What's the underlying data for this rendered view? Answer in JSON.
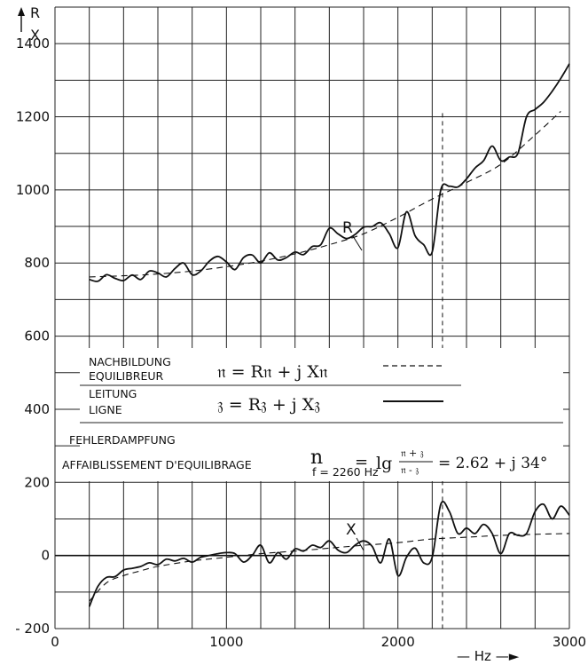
{
  "chart_data": {
    "type": "line",
    "y_axis_label_top": "R",
    "y_axis_label_bottom": "X",
    "x_axis_label": "— Hz —►",
    "xlim": [
      0,
      3000
    ],
    "ylim": [
      -200,
      1500
    ],
    "grid": true,
    "x_ticks": [
      0,
      1000,
      2000,
      3000
    ],
    "y_ticks": [
      -200,
      0,
      200,
      400,
      600,
      800,
      1000,
      1200,
      1400
    ],
    "x_ticks_text": [
      "0",
      "1000",
      "2000",
      "3000"
    ],
    "y_ticks_text": [
      "- 200",
      "0",
      "200",
      "400",
      "600",
      "800",
      "1000",
      "1200",
      "1400"
    ],
    "marker_x": 2260,
    "curve_labels": {
      "R": "R",
      "X": "X"
    },
    "series": [
      {
        "name": "R",
        "style": "solid",
        "x": [
          200,
          250,
          300,
          350,
          400,
          450,
          500,
          550,
          600,
          650,
          700,
          750,
          800,
          850,
          900,
          950,
          1000,
          1050,
          1100,
          1150,
          1200,
          1250,
          1300,
          1350,
          1400,
          1450,
          1500,
          1550,
          1600,
          1650,
          1700,
          1750,
          1800,
          1850,
          1900,
          1950,
          2000,
          2050,
          2100,
          2150,
          2200,
          2250,
          2300,
          2350,
          2400,
          2450,
          2500,
          2550,
          2600,
          2650,
          2700,
          2750,
          2800,
          2850,
          2900,
          2950,
          3000
        ],
        "y": [
          755,
          750,
          768,
          758,
          752,
          767,
          755,
          778,
          773,
          762,
          785,
          800,
          768,
          778,
          805,
          818,
          803,
          782,
          815,
          822,
          800,
          828,
          808,
          815,
          830,
          823,
          845,
          850,
          895,
          880,
          867,
          878,
          898,
          900,
          910,
          880,
          842,
          940,
          875,
          850,
          830,
          1000,
          1010,
          1008,
          1030,
          1060,
          1080,
          1120,
          1080,
          1090,
          1100,
          1200,
          1220,
          1240,
          1270,
          1305,
          1345
        ]
      },
      {
        "name": "X",
        "style": "solid",
        "x": [
          200,
          250,
          300,
          350,
          400,
          450,
          500,
          550,
          600,
          650,
          700,
          750,
          800,
          850,
          900,
          950,
          1000,
          1050,
          1100,
          1150,
          1200,
          1250,
          1300,
          1350,
          1400,
          1450,
          1500,
          1550,
          1600,
          1650,
          1700,
          1750,
          1800,
          1850,
          1900,
          1950,
          2000,
          2050,
          2100,
          2150,
          2200,
          2250,
          2300,
          2350,
          2400,
          2450,
          2500,
          2550,
          2600,
          2650,
          2700,
          2750,
          2800,
          2850,
          2900,
          2950,
          3000
        ],
        "y": [
          -140,
          -85,
          -60,
          -58,
          -40,
          -35,
          -30,
          -20,
          -25,
          -10,
          -15,
          -8,
          -18,
          -5,
          0,
          5,
          8,
          5,
          -18,
          0,
          28,
          -20,
          8,
          -10,
          18,
          12,
          28,
          22,
          40,
          15,
          8,
          28,
          40,
          25,
          -20,
          45,
          -55,
          -5,
          20,
          -20,
          -5,
          140,
          120,
          60,
          75,
          60,
          85,
          60,
          5,
          60,
          55,
          60,
          120,
          140,
          100,
          135,
          110
        ]
      },
      {
        "name": "Nachbildung R",
        "style": "dashed",
        "x": [
          200,
          400,
          600,
          800,
          1000,
          1200,
          1400,
          1600,
          1800,
          2000,
          2200,
          2400,
          2600,
          2800,
          2950
        ],
        "y": [
          762,
          765,
          770,
          778,
          790,
          805,
          825,
          850,
          880,
          925,
          975,
          1020,
          1070,
          1150,
          1215
        ]
      },
      {
        "name": "Nachbildung X",
        "style": "dashed",
        "x": [
          200,
          300,
          400,
          500,
          600,
          800,
          1000,
          1200,
          1400,
          1600,
          1800,
          2000,
          2200,
          2400,
          2600,
          2800,
          3000
        ],
        "y": [
          -125,
          -75,
          -55,
          -42,
          -30,
          -15,
          -5,
          5,
          12,
          20,
          28,
          35,
          45,
          50,
          55,
          58,
          60
        ]
      }
    ],
    "legend": {
      "row1_de": "NACHBILDUNG",
      "row1_fr": "EQUILIBREUR",
      "row1_formula": "𝔫 = R𝔫 + j X𝔫",
      "row2_de": "LEITUNG",
      "row2_fr": "LIGNE",
      "row2_formula": "𝔷 = R𝔷 + j X𝔷"
    },
    "annotation": {
      "line1": "FEHLERDAMPFUNG",
      "line2": "AFFAIBLISSEMENT D'EQUILIBRAGE",
      "symbol": "n",
      "subscript": "f = 2260 Hz",
      "eq": "=",
      "lg": "lg",
      "frac_num": "𝔫 + 𝔷",
      "frac_den": "𝔫 - 𝔷",
      "result": "= 2.62 + j 34°"
    },
    "colors": {
      "ink": "#111111",
      "paper": "#ffffff"
    }
  }
}
